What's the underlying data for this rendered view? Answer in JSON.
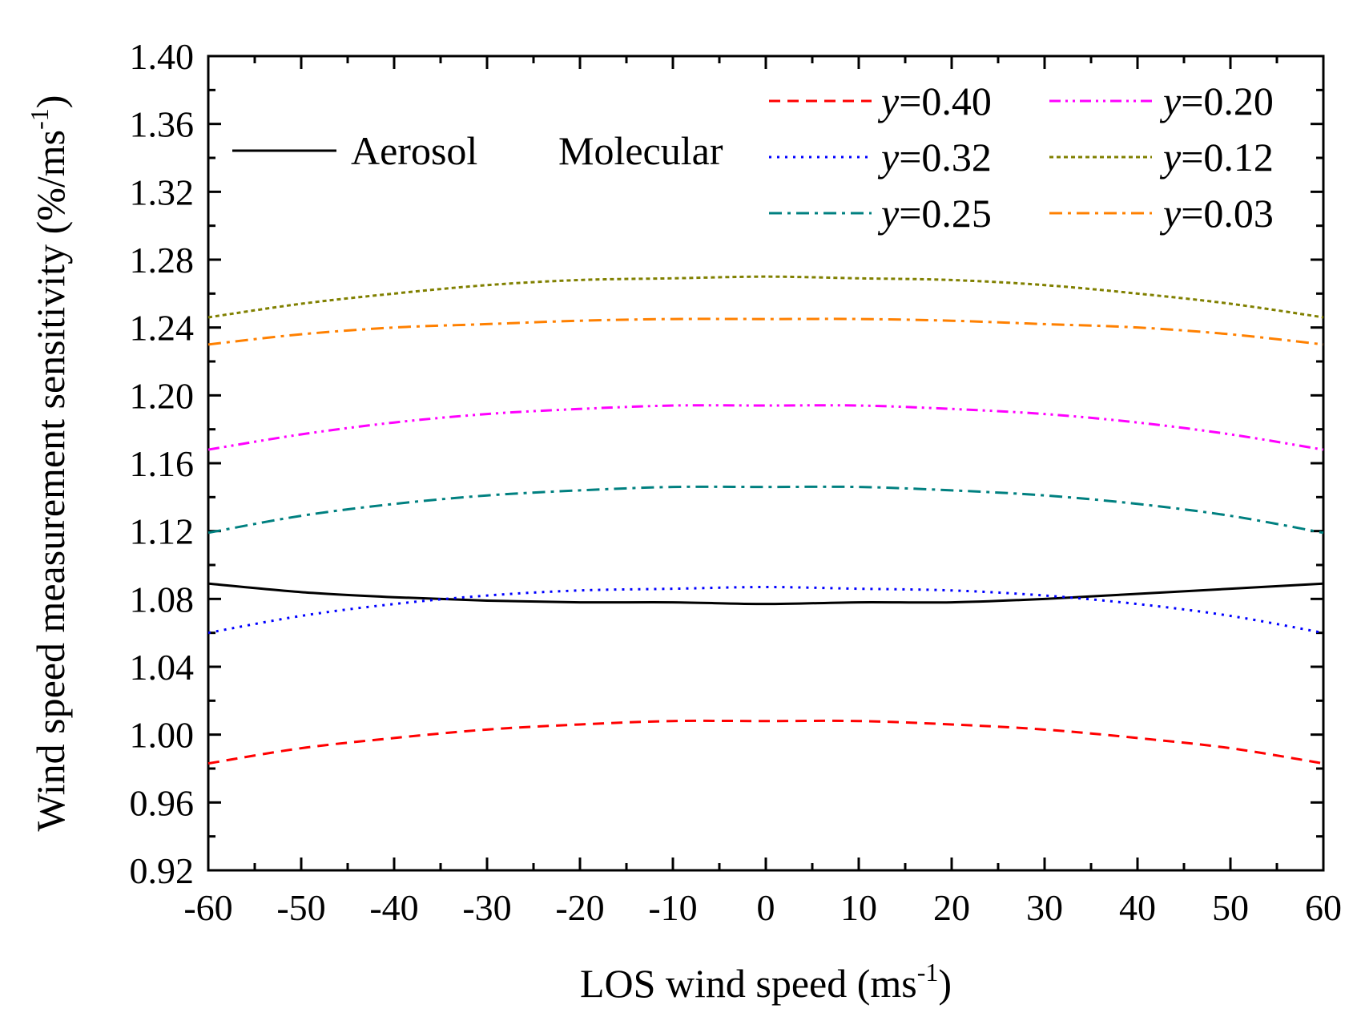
{
  "chart_data": {
    "type": "line",
    "title": "",
    "xlabel": "LOS wind speed (ms",
    "xlabel_sup": "-1",
    "xlabel_close": ")",
    "ylabel": "Wind speed measurement sensitivity (%/ms",
    "ylabel_sup": "-1",
    "ylabel_close": ")",
    "xlim": [
      -60,
      60
    ],
    "ylim": [
      0.92,
      1.4
    ],
    "xticks": [
      -60,
      -50,
      -40,
      -30,
      -20,
      -10,
      0,
      10,
      20,
      30,
      40,
      50,
      60
    ],
    "xtick_labels": [
      "-60",
      "-50",
      "-40",
      "-30",
      "-20",
      "-10",
      "0",
      "10",
      "20",
      "30",
      "40",
      "50",
      "60"
    ],
    "yticks": [
      0.92,
      0.96,
      1.0,
      1.04,
      1.08,
      1.12,
      1.16,
      1.2,
      1.24,
      1.28,
      1.32,
      1.36,
      1.4
    ],
    "ytick_labels": [
      "0.92",
      "0.96",
      "1.00",
      "1.04",
      "1.08",
      "1.12",
      "1.16",
      "1.20",
      "1.24",
      "1.28",
      "1.32",
      "1.36",
      "1.40"
    ],
    "x": [
      -60,
      -50,
      -40,
      -30,
      -20,
      -10,
      0,
      10,
      20,
      30,
      40,
      50,
      60
    ],
    "legend_group_labels": {
      "aerosol": "Aerosol",
      "molecular": "Molecular"
    },
    "legend_prefix": "y",
    "series": [
      {
        "name": "Aerosol",
        "group": "aerosol",
        "color": "#000000",
        "dash": "solid",
        "values": [
          1.089,
          1.084,
          1.081,
          1.079,
          1.078,
          1.078,
          1.077,
          1.078,
          1.078,
          1.08,
          1.083,
          1.086,
          1.089
        ]
      },
      {
        "name": "y=0.40",
        "value_label": "=0.40",
        "group": "molecular",
        "color": "#ff0000",
        "dash": "dash",
        "values": [
          0.983,
          0.992,
          0.998,
          1.003,
          1.006,
          1.008,
          1.008,
          1.008,
          1.006,
          1.003,
          0.998,
          0.992,
          0.983
        ]
      },
      {
        "name": "y=0.32",
        "value_label": "=0.32",
        "group": "molecular",
        "color": "#0000ff",
        "dash": "dot",
        "values": [
          1.06,
          1.07,
          1.077,
          1.082,
          1.085,
          1.086,
          1.087,
          1.086,
          1.085,
          1.082,
          1.077,
          1.07,
          1.06
        ]
      },
      {
        "name": "y=0.25",
        "value_label": "=0.25",
        "group": "molecular",
        "color": "#008080",
        "dash": "dashdot",
        "values": [
          1.119,
          1.129,
          1.136,
          1.141,
          1.144,
          1.146,
          1.146,
          1.146,
          1.144,
          1.141,
          1.136,
          1.129,
          1.119
        ]
      },
      {
        "name": "y=0.20",
        "value_label": "=0.20",
        "group": "molecular",
        "color": "#ff00ff",
        "dash": "dashdotdot",
        "values": [
          1.168,
          1.177,
          1.184,
          1.189,
          1.192,
          1.194,
          1.194,
          1.194,
          1.192,
          1.189,
          1.184,
          1.177,
          1.168
        ]
      },
      {
        "name": "y=0.12",
        "value_label": "=0.12",
        "group": "molecular",
        "color": "#808000",
        "dash": "shortdash",
        "values": [
          1.246,
          1.254,
          1.26,
          1.265,
          1.268,
          1.269,
          1.27,
          1.269,
          1.268,
          1.265,
          1.26,
          1.254,
          1.246
        ]
      },
      {
        "name": "y=0.03",
        "value_label": "=0.03",
        "group": "molecular",
        "color": "#ff8000",
        "dash": "dashdot",
        "values": [
          1.23,
          1.236,
          1.24,
          1.242,
          1.244,
          1.245,
          1.245,
          1.245,
          1.244,
          1.242,
          1.24,
          1.236,
          1.23
        ]
      }
    ],
    "legend_position": "top-right",
    "grid": false
  }
}
